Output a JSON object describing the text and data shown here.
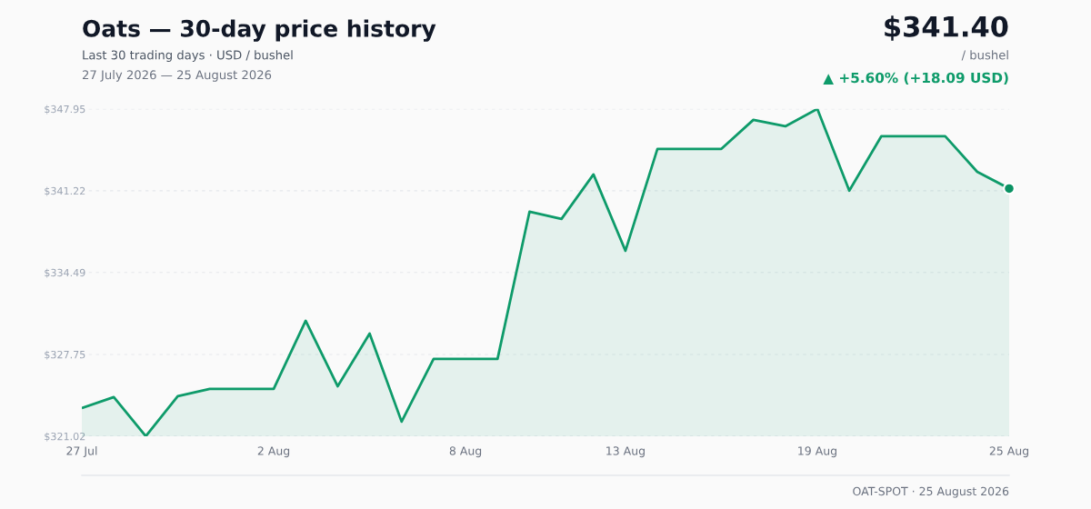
{
  "chart_data": {
    "type": "area",
    "title": "Oats — 30-day price history",
    "subtitle": "Last 30 trading days · USD / bushel",
    "annotations": [
      "27 July 2026 — 25 August 2026",
      "$341.40",
      "/ bushel",
      "▲ +5.60% (+18.09 USD)",
      "OAT-SPOT · 25 August 2026"
    ],
    "x": [
      "2026-07-27",
      "2026-07-28",
      "2026-07-29",
      "2026-07-30",
      "2026-07-31",
      "2026-08-01",
      "2026-08-02",
      "2026-08-03",
      "2026-08-04",
      "2026-08-05",
      "2026-08-06",
      "2026-08-07",
      "2026-08-08",
      "2026-08-09",
      "2026-08-10",
      "2026-08-11",
      "2026-08-12",
      "2026-08-13",
      "2026-08-14",
      "2026-08-15",
      "2026-08-16",
      "2026-08-17",
      "2026-08-18",
      "2026-08-19",
      "2026-08-20",
      "2026-08-21",
      "2026-08-22",
      "2026-08-23",
      "2026-08-24",
      "2026-08-25"
    ],
    "series": [
      {
        "color": "#0e9b6a",
        "values": [
          323.34,
          324.24,
          321.02,
          324.31,
          324.91,
          324.91,
          324.91,
          330.52,
          325.13,
          329.47,
          322.22,
          327.38,
          327.38,
          327.38,
          339.49,
          338.9,
          342.56,
          336.28,
          344.66,
          344.66,
          344.66,
          347.05,
          346.52,
          347.95,
          341.22,
          345.7,
          345.7,
          345.7,
          342.78,
          341.4
        ]
      },
      {
        "type": "scatter",
        "color": "#0a9263",
        "x": [
          "2026-08-25"
        ],
        "values": [
          341.4
        ]
      }
    ],
    "xlim": [
      "2026-07-27",
      "2026-08-25"
    ],
    "xticks": [
      {
        "value": "2026-07-27",
        "label": "27 Jul"
      },
      {
        "value": "2026-08-02",
        "label": "2 Aug"
      },
      {
        "value": "2026-08-08",
        "label": "8 Aug"
      },
      {
        "value": "2026-08-13",
        "label": "13 Aug"
      },
      {
        "value": "2026-08-19",
        "label": "19 Aug"
      },
      {
        "value": "2026-08-25",
        "label": "25 Aug"
      }
    ],
    "ylim": [
      321.02,
      347.95
    ],
    "yticks": [
      {
        "value": 321.02,
        "label": "$321.02"
      },
      {
        "value": 327.75,
        "label": "$327.75"
      },
      {
        "value": 334.49,
        "label": "$334.49"
      },
      {
        "value": 341.22,
        "label": "$341.22"
      },
      {
        "value": 347.95,
        "label": "$347.95"
      }
    ],
    "grid": "y",
    "line_style": "solid"
  }
}
